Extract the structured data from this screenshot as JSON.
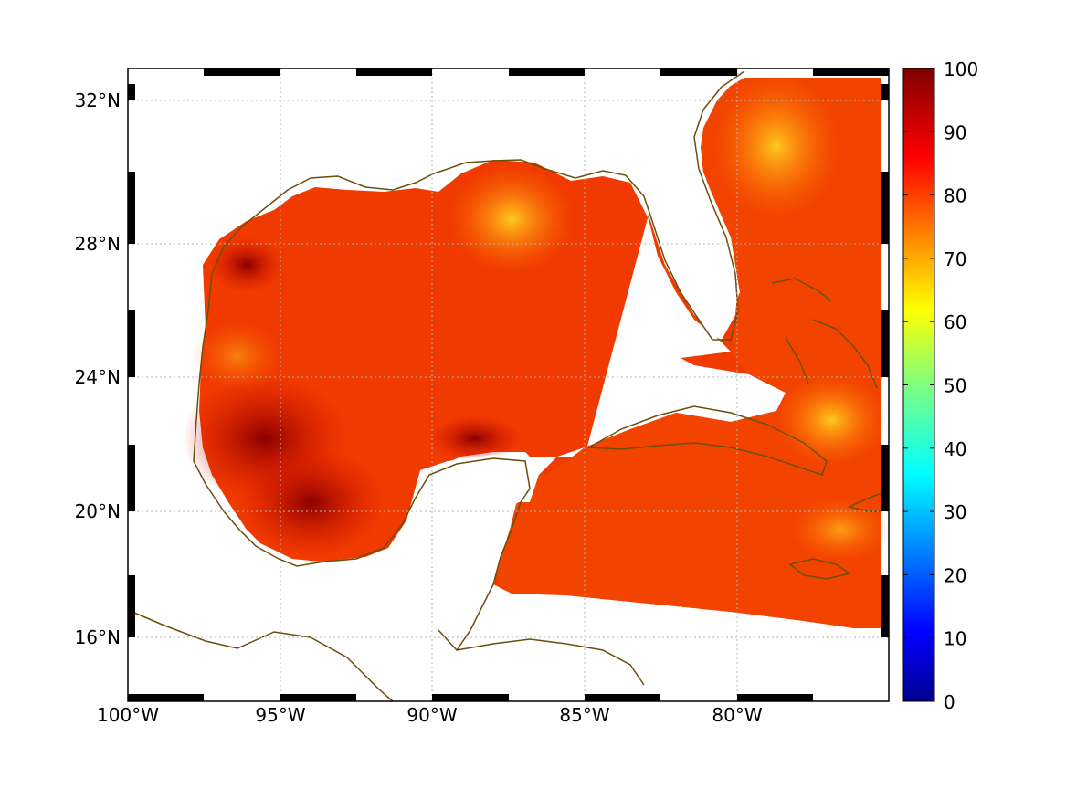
{
  "map": {
    "lon_labels": [
      "100°W",
      "95°W",
      "90°W",
      "85°W",
      "80°W"
    ],
    "lat_labels": [
      "32°N",
      "28°N",
      "24°N",
      "20°N",
      "16°N"
    ],
    "lon_range": [
      -100,
      -75
    ],
    "lat_range": [
      14.5,
      33
    ],
    "grid": true,
    "coastline_color": "#6b4e0a",
    "frame_style": "alternating black/white border"
  },
  "colorbar": {
    "colormap": "jet",
    "ticks": [
      "100",
      "90",
      "80",
      "70",
      "60",
      "50",
      "40",
      "30",
      "20",
      "10",
      "0"
    ],
    "range": [
      0,
      100
    ]
  },
  "field": {
    "typical_value_range": [
      75,
      98
    ],
    "high_values_region": "western Gulf of Mexico",
    "lower_values_region": "northern Gulf near 87.5°W and east of Florida"
  }
}
